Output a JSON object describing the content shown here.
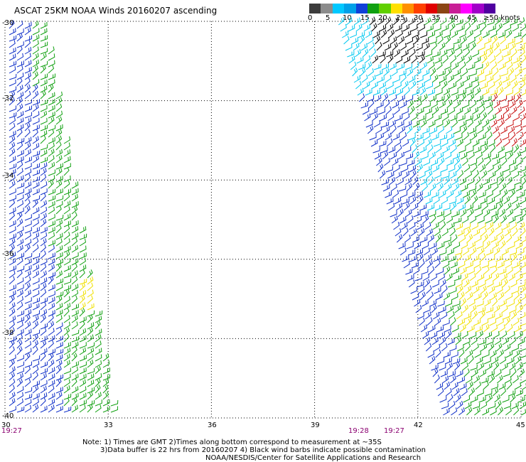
{
  "title": "ASCAT 25KM NOAA Winds 20160207 ascending",
  "colorbar": {
    "colors": [
      "#3c3c3c",
      "#8c8c8c",
      "#00c8ff",
      "#00a0e8",
      "#1040d8",
      "#10a010",
      "#60d000",
      "#ffe000",
      "#ff9000",
      "#ff4000",
      "#e00000",
      "#8b4513",
      "#c81e96",
      "#ff00ff",
      "#a000c8",
      "#5000a0"
    ],
    "labels": [
      "0",
      "5",
      "10",
      "15",
      "20",
      "25",
      "30",
      "35",
      "40",
      "45",
      "≥50 knots"
    ]
  },
  "axes": {
    "lat_labels": [
      "-30",
      "-32",
      "-34",
      "-36",
      "-38",
      "-40"
    ],
    "lon_labels": [
      "30",
      "33",
      "36",
      "39",
      "42",
      "45"
    ]
  },
  "times": [
    "19:27",
    "19:28",
    "19:27"
  ],
  "notes": [
    "Note: 1) Times are GMT 2)Times along bottom correspond to measurement at ~35S",
    "3)Data buffer is 22 hrs from 20160207 4) Black wind barbs indicate possible contamination",
    "NOAA/NESDIS/Center for Satellite Applications and Research"
  ],
  "swath_colors": {
    "blue": "#1030c8",
    "green": "#10a010",
    "cyan": "#00c8f0",
    "yellow": "#f0e000",
    "red": "#c81010",
    "black": "#000000"
  }
}
